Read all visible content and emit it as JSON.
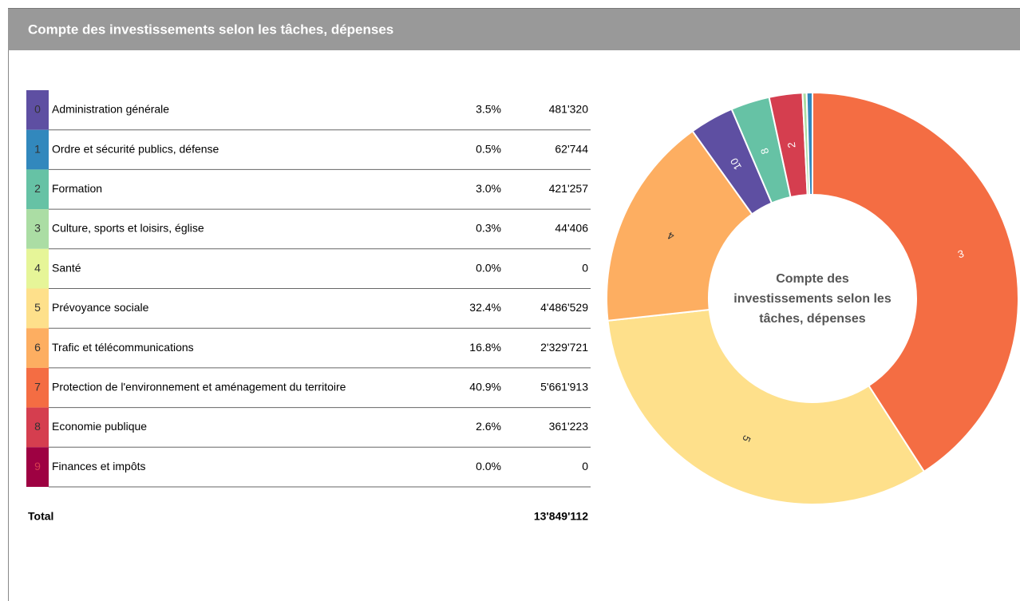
{
  "header": {
    "title": "Compte des investissements selon les tâches, dépenses"
  },
  "chart_data": {
    "type": "pie",
    "donut": true,
    "center_title_lines": [
      "Compte des",
      "investissements selon les",
      "tâches, dépenses"
    ],
    "codes": [
      "0",
      "1",
      "2",
      "3",
      "4",
      "5",
      "6",
      "7",
      "8",
      "9"
    ],
    "categories": [
      "Administration générale",
      "Ordre et sécurité publics, défense",
      "Formation",
      "Culture, sports et loisirs, église",
      "Santé",
      "Prévoyance sociale",
      "Trafic et télécommunications",
      "Protection de l'environnement et aménagement du territoire",
      "Economie publique",
      "Finances et impôts"
    ],
    "percent_labels": [
      "3.5%",
      "0.5%",
      "3.0%",
      "0.3%",
      "0.0%",
      "32.4%",
      "16.8%",
      "40.9%",
      "2.6%",
      "0.0%"
    ],
    "values": [
      481320,
      62744,
      421257,
      44406,
      0,
      4486529,
      2329721,
      5661913,
      361223,
      0
    ],
    "value_labels": [
      "481'320",
      "62'744",
      "421'257",
      "44'406",
      "0",
      "4'486'529",
      "2'329'721",
      "5'661'913",
      "361'223",
      "0"
    ],
    "colors": [
      "#5e4fa2",
      "#3288bd",
      "#66c2a5",
      "#abdda4",
      "#e6f598",
      "#fee08b",
      "#fdae61",
      "#f46d43",
      "#d53e4f",
      "#9e0142"
    ],
    "slice_labels": [
      "10",
      null,
      "8",
      null,
      null,
      "5",
      "4",
      "3",
      "2",
      null
    ],
    "slice_order": [
      7,
      5,
      6,
      0,
      2,
      8,
      3,
      1,
      4,
      9
    ],
    "total_label": "Total",
    "total_value": "13'849'112"
  }
}
